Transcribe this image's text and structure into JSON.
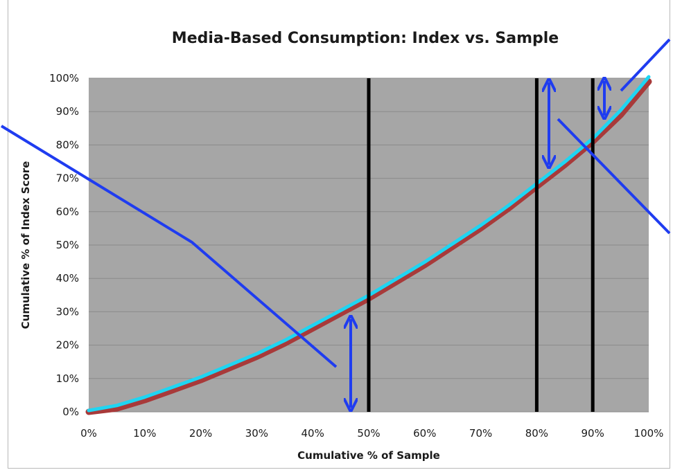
{
  "chart_data": {
    "type": "line",
    "title": "Media-Based Consumption: Index vs. Sample",
    "xlabel": "Cumulative % of Sample",
    "ylabel": "Cumulative % of Index Score",
    "xlim": [
      0,
      100
    ],
    "ylim": [
      0,
      100
    ],
    "x_ticks": [
      "0%",
      "10%",
      "20%",
      "30%",
      "40%",
      "50%",
      "60%",
      "70%",
      "80%",
      "90%",
      "100%"
    ],
    "y_ticks": [
      "0%",
      "10%",
      "20%",
      "30%",
      "40%",
      "50%",
      "60%",
      "70%",
      "80%",
      "90%",
      "100%"
    ],
    "grid": true,
    "plot_background": "#a6a6a6",
    "series": [
      {
        "color": "#a83a3a",
        "x": [
          0,
          5,
          10,
          15,
          20,
          25,
          30,
          35,
          40,
          45,
          50,
          55,
          60,
          65,
          70,
          75,
          80,
          85,
          90,
          95,
          100
        ],
        "y": [
          0,
          1,
          3.5,
          6.5,
          9.5,
          13,
          16.5,
          20.5,
          25,
          29.5,
          34,
          39,
          44,
          49.5,
          55,
          61,
          67.5,
          74,
          81,
          89,
          99
        ]
      },
      {
        "color": "#1fd5f2",
        "x": [
          0,
          5,
          10,
          15,
          20,
          25,
          30,
          35,
          40,
          45,
          50,
          55,
          60,
          65,
          70,
          75,
          80,
          85,
          90,
          95,
          100
        ],
        "y": [
          0,
          1.5,
          4,
          7,
          10,
          13.5,
          17,
          21,
          25.5,
          30,
          34.5,
          39.5,
          44.5,
          50,
          55.5,
          61.5,
          68,
          74.5,
          81.5,
          90,
          100
        ]
      }
    ],
    "reference_lines_x": [
      50,
      80,
      90
    ],
    "reference_line_color": "#000000",
    "annotation_color": "#1f3cf0"
  }
}
